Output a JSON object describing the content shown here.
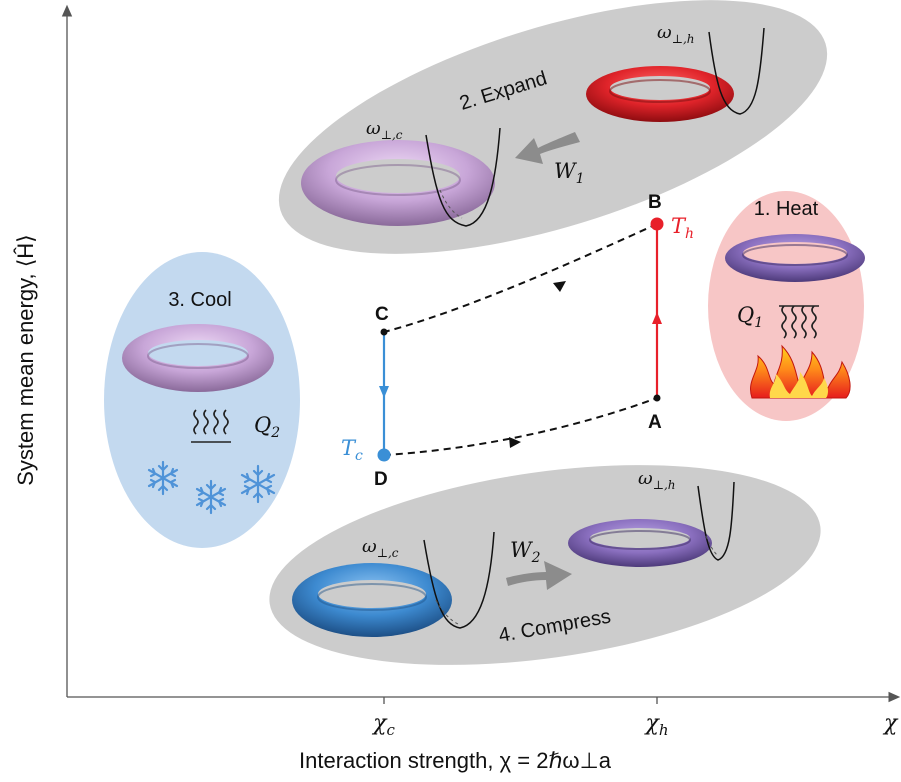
{
  "axes": {
    "y_label": "System mean energy, ⟨Ĥ⟩",
    "x_label": "Interaction strength, χ = 2ℏω⊥a",
    "x_end_label": "χ",
    "x_ticks": [
      {
        "label": "χc",
        "main": "χ",
        "sub": "c"
      },
      {
        "label": "χh",
        "main": "χ",
        "sub": "h"
      }
    ]
  },
  "points": {
    "A": {
      "label": "A"
    },
    "B": {
      "label": "B",
      "temp_main": "T",
      "temp_sub": "h",
      "color": "#e8202a"
    },
    "C": {
      "label": "C"
    },
    "D": {
      "label": "D",
      "temp_main": "T",
      "temp_sub": "c",
      "color": "#3a8fd6"
    }
  },
  "stages": {
    "heat": {
      "title": "1. Heat",
      "heat_main": "Q",
      "heat_sub": "1",
      "bg": "#f7c6c6"
    },
    "expand": {
      "title": "2. Expand",
      "work_main": "W",
      "work_sub": "1",
      "bg": "#cccccc"
    },
    "cool": {
      "title": "3. Cool",
      "heat_main": "Q",
      "heat_sub": "2",
      "bg": "#c3d9ef"
    },
    "compress": {
      "title": "4. Compress",
      "work_main": "W",
      "work_sub": "2",
      "bg": "#cccccc"
    }
  },
  "trap_labels": {
    "hot_main": "ω",
    "hot_sub": "⊥,h",
    "cold_main": "ω",
    "cold_sub": "⊥,c"
  },
  "colors": {
    "hot_line": "#e8202a",
    "cold_line": "#3a8fd6",
    "torus_red": "#e0242a",
    "torus_purple": "#8a6fbf",
    "torus_lilac": "#c8a6d8",
    "torus_blue": "#3d8ad0",
    "snowflake": "#4f93d8"
  }
}
